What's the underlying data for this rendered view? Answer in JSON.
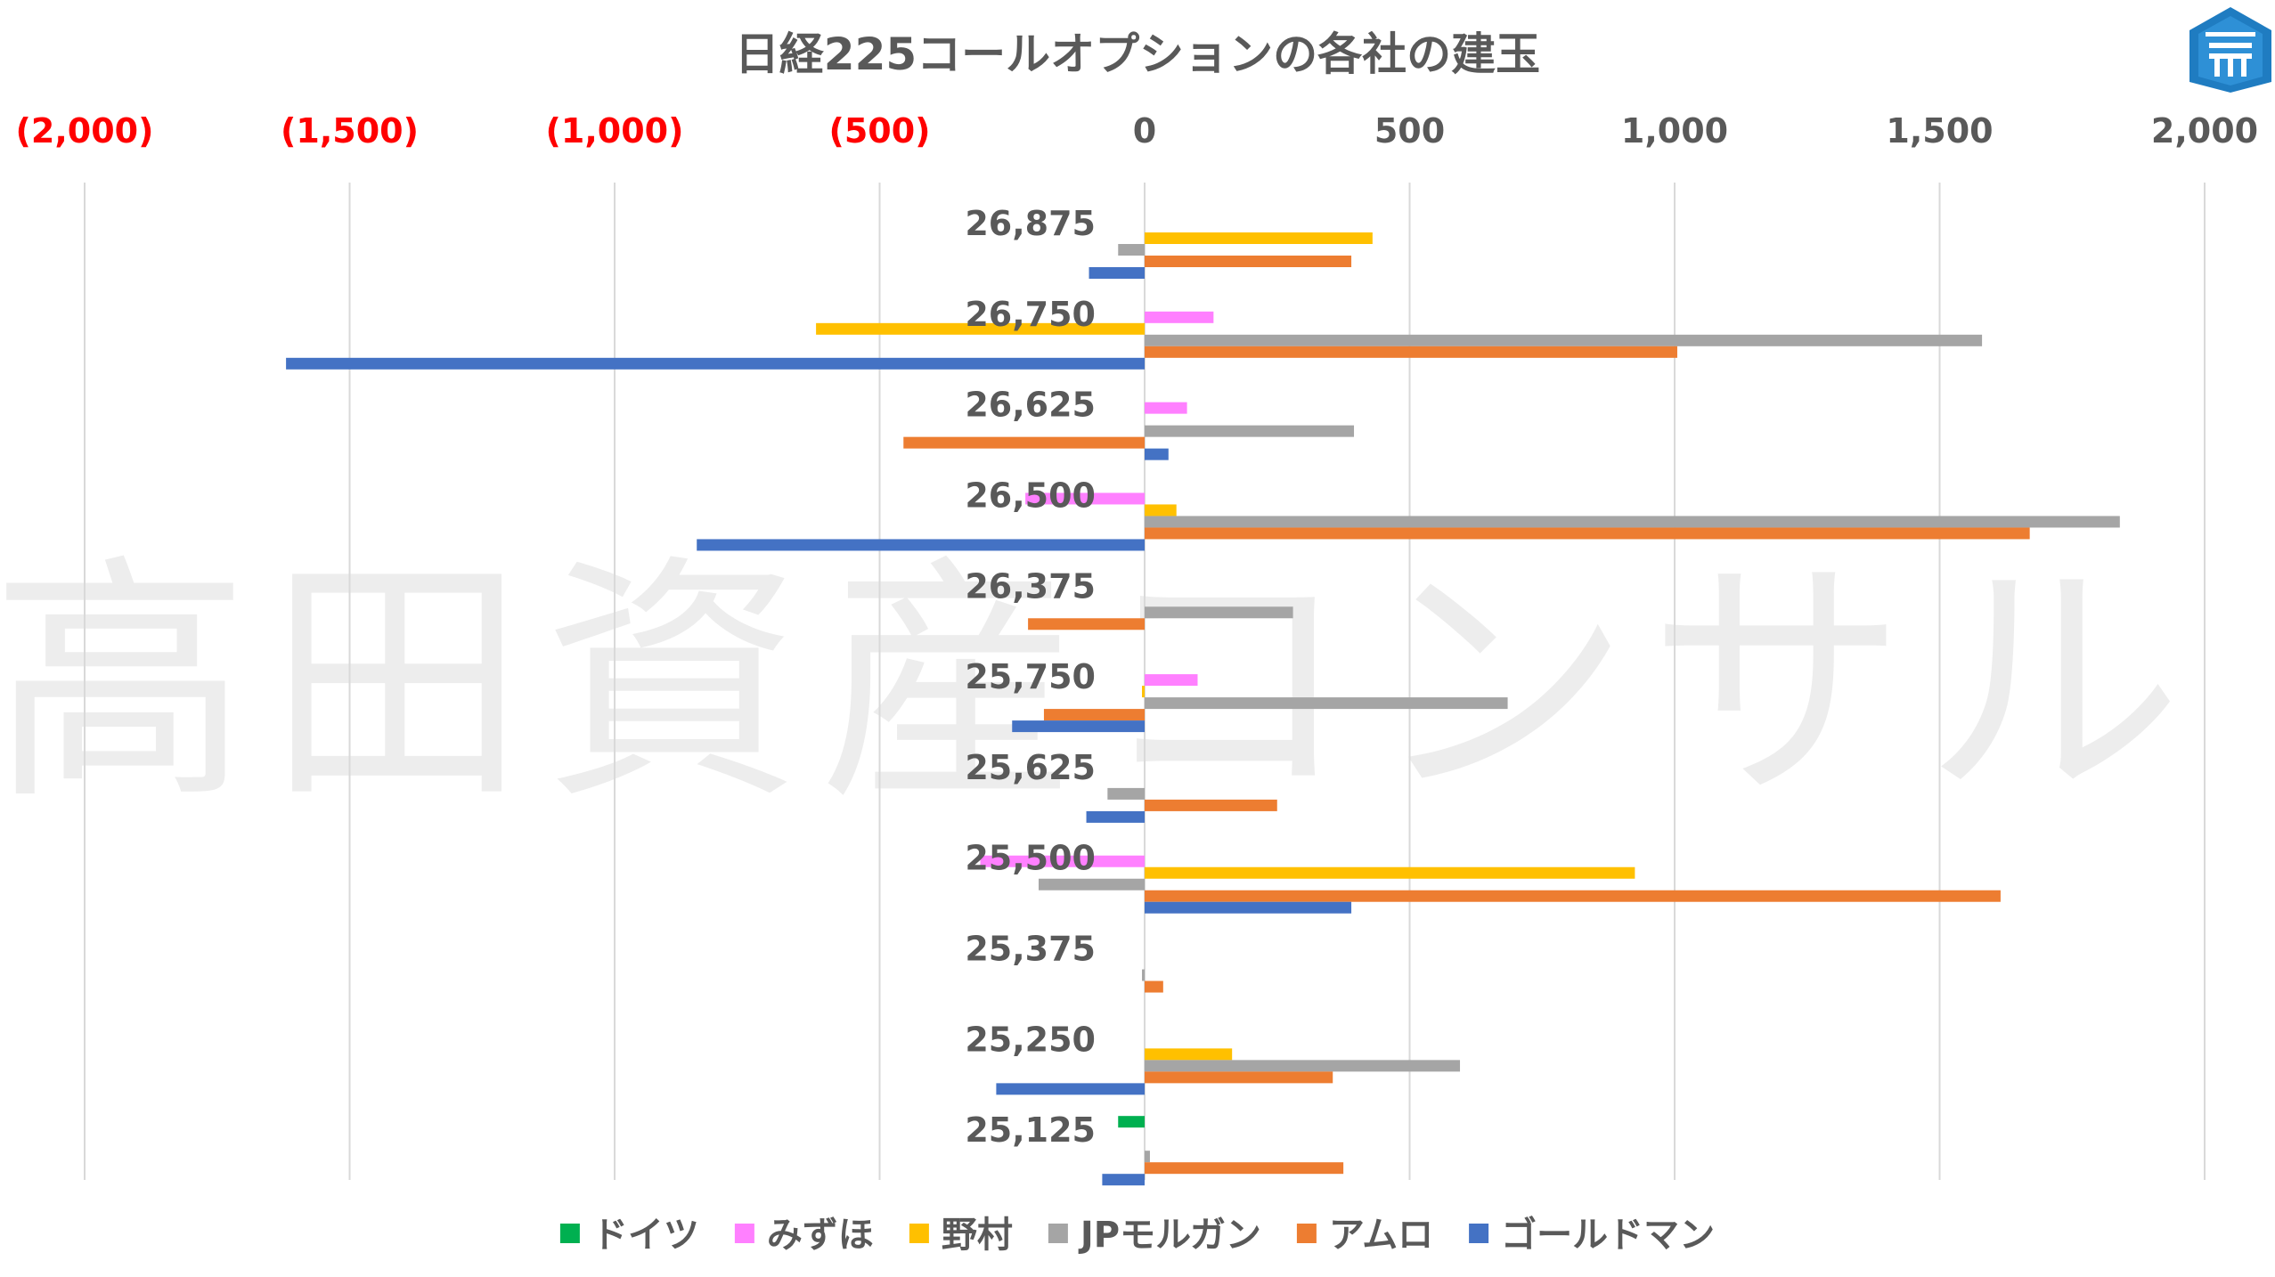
{
  "chart_data": {
    "type": "bar",
    "orientation": "horizontal",
    "title": "日経225コールオプションの各社の建玉",
    "watermark": "高田資産コンサル",
    "logo_icon": "takata-logo-icon",
    "xlim": [
      -2000,
      2000
    ],
    "x_ticks": [
      -2000,
      -1500,
      -1000,
      -500,
      0,
      500,
      1000,
      1500,
      2000
    ],
    "x_tick_labels": [
      "(2,000)",
      "(1,500)",
      "(1,000)",
      "(500)",
      "0",
      "500",
      "1,000",
      "1,500",
      "2,000"
    ],
    "negative_tick_color": "#ff0000",
    "grid": true,
    "legend_position": "bottom",
    "categories": [
      "26,875",
      "26,750",
      "26,625",
      "26,500",
      "26,375",
      "25,750",
      "25,625",
      "25,500",
      "25,375",
      "25,250",
      "25,125"
    ],
    "series": [
      {
        "name": "ドイツ",
        "color": "#00b050",
        "values": [
          0,
          0,
          0,
          0,
          0,
          0,
          0,
          0,
          0,
          0,
          -50
        ]
      },
      {
        "name": "みずほ",
        "color": "#ff80ff",
        "values": [
          0,
          130,
          80,
          -225,
          0,
          100,
          0,
          -310,
          0,
          0,
          0
        ]
      },
      {
        "name": "野村",
        "color": "#ffc000",
        "values": [
          430,
          -620,
          0,
          60,
          0,
          -5,
          0,
          925,
          0,
          165,
          0
        ]
      },
      {
        "name": "JPモルガン",
        "color": "#a5a5a5",
        "values": [
          -50,
          1580,
          395,
          1840,
          280,
          685,
          -70,
          -200,
          -5,
          595,
          10
        ]
      },
      {
        "name": "アムロ",
        "color": "#ed7d31",
        "values": [
          390,
          1005,
          -455,
          1670,
          -220,
          -190,
          250,
          1615,
          35,
          355,
          375
        ]
      },
      {
        "name": "ゴールドマン",
        "color": "#4472c4",
        "values": [
          -105,
          -1620,
          45,
          -845,
          0,
          -250,
          -110,
          390,
          0,
          -280,
          -80
        ]
      }
    ]
  }
}
